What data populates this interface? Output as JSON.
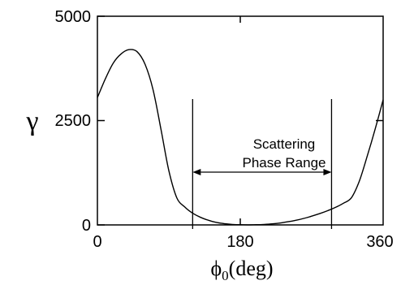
{
  "chart_data": {
    "type": "line",
    "title": "",
    "xlabel": "ϕ0(deg)",
    "xlabel_main": "ϕ",
    "xlabel_sub": "0",
    "xlabel_unit": "(deg)",
    "ylabel": "γ",
    "xlim": [
      0,
      360
    ],
    "ylim": [
      0,
      5000
    ],
    "xticks": [
      0,
      180,
      360
    ],
    "yticks": [
      0,
      2500,
      5000
    ],
    "xtick_labels": [
      "0",
      "180",
      "360"
    ],
    "ytick_labels": [
      "0",
      "2500",
      "5000"
    ],
    "grid": false,
    "series": [
      {
        "x": [
          0,
          10,
          20,
          30,
          40,
          50,
          60,
          70,
          80,
          90,
          100,
          110,
          120,
          130,
          140,
          150,
          160,
          170,
          180,
          190,
          200,
          210,
          220,
          230,
          240,
          250,
          260,
          270,
          280,
          290,
          300,
          310,
          320,
          330,
          340,
          350,
          360
        ],
        "values": [
          3050,
          3500,
          3880,
          4100,
          4200,
          4150,
          3850,
          3250,
          2300,
          1300,
          650,
          430,
          280,
          180,
          110,
          60,
          30,
          12,
          5,
          2,
          5,
          12,
          25,
          45,
          75,
          110,
          155,
          210,
          270,
          340,
          420,
          520,
          650,
          1050,
          1650,
          2300,
          3000
        ]
      }
    ],
    "annotations": {
      "text_line1": "Scattering",
      "text_line2": "Phase Range",
      "range_start_deg": 120,
      "range_end_deg": 295
    }
  }
}
